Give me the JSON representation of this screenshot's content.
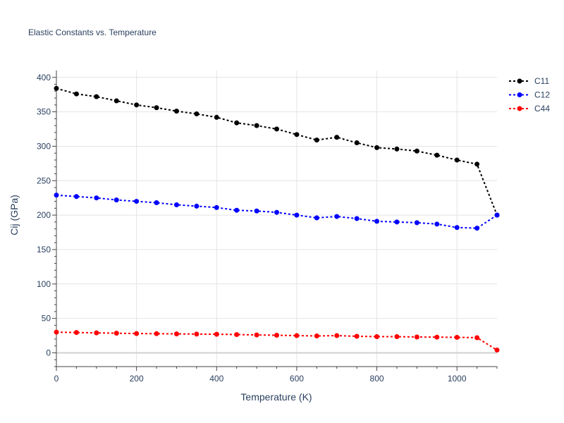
{
  "chart_data": {
    "type": "line",
    "title": "Elastic Constants vs. Temperature",
    "xlabel": "Temperature (K)",
    "ylabel": "Cij (GPa)",
    "xlim": [
      0,
      1100
    ],
    "ylim": [
      -20,
      410
    ],
    "xticks": [
      0,
      200,
      400,
      600,
      800,
      1000
    ],
    "yticks": [
      0,
      50,
      100,
      150,
      200,
      250,
      300,
      350,
      400
    ],
    "grid": true,
    "legend_position": "top-right",
    "x": [
      0,
      50,
      100,
      150,
      200,
      250,
      300,
      350,
      400,
      450,
      500,
      550,
      600,
      650,
      700,
      750,
      800,
      850,
      900,
      950,
      1000,
      1050,
      1100
    ],
    "series": [
      {
        "name": "C11",
        "color": "#000000",
        "values": [
          384,
          376,
          372,
          366,
          360,
          356,
          351,
          347,
          342,
          334,
          330,
          325,
          317,
          309,
          313,
          305,
          298,
          296,
          293,
          287,
          280,
          274,
          200
        ]
      },
      {
        "name": "C12",
        "color": "#0000ff",
        "values": [
          229,
          227,
          225,
          222,
          220,
          218,
          215,
          213,
          211,
          207,
          206,
          204,
          200,
          196,
          198,
          195,
          191,
          190,
          189,
          187,
          182,
          181,
          200
        ]
      },
      {
        "name": "C44",
        "color": "#ff0000",
        "values": [
          30,
          29.5,
          29,
          28.5,
          28,
          27.8,
          27.5,
          27.2,
          27,
          26.5,
          26,
          25.5,
          25,
          24.5,
          25,
          24,
          23.5,
          23.5,
          23,
          22.8,
          22.5,
          22,
          4
        ]
      }
    ]
  }
}
